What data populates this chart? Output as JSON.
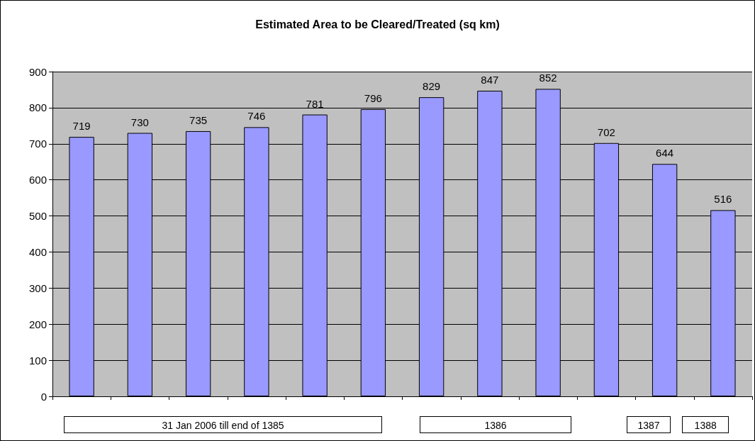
{
  "chart_data": {
    "type": "bar",
    "title": "Estimated Area to be Cleared/Treated (sq km)",
    "categories": [
      null,
      null,
      null,
      null,
      null,
      null,
      null,
      null,
      null,
      null,
      null,
      null
    ],
    "values": [
      719,
      730,
      735,
      746,
      781,
      796,
      829,
      847,
      852,
      702,
      644,
      516
    ],
    "color": "#9999ff",
    "ylim": [
      0,
      900
    ],
    "yticks": [
      0,
      100,
      200,
      300,
      400,
      500,
      600,
      700,
      800,
      900
    ],
    "grid": "y",
    "data_labels": true,
    "annotations": [
      "31 Jan 2006 till end of 1385",
      "1386",
      "1387",
      "1388"
    ]
  }
}
